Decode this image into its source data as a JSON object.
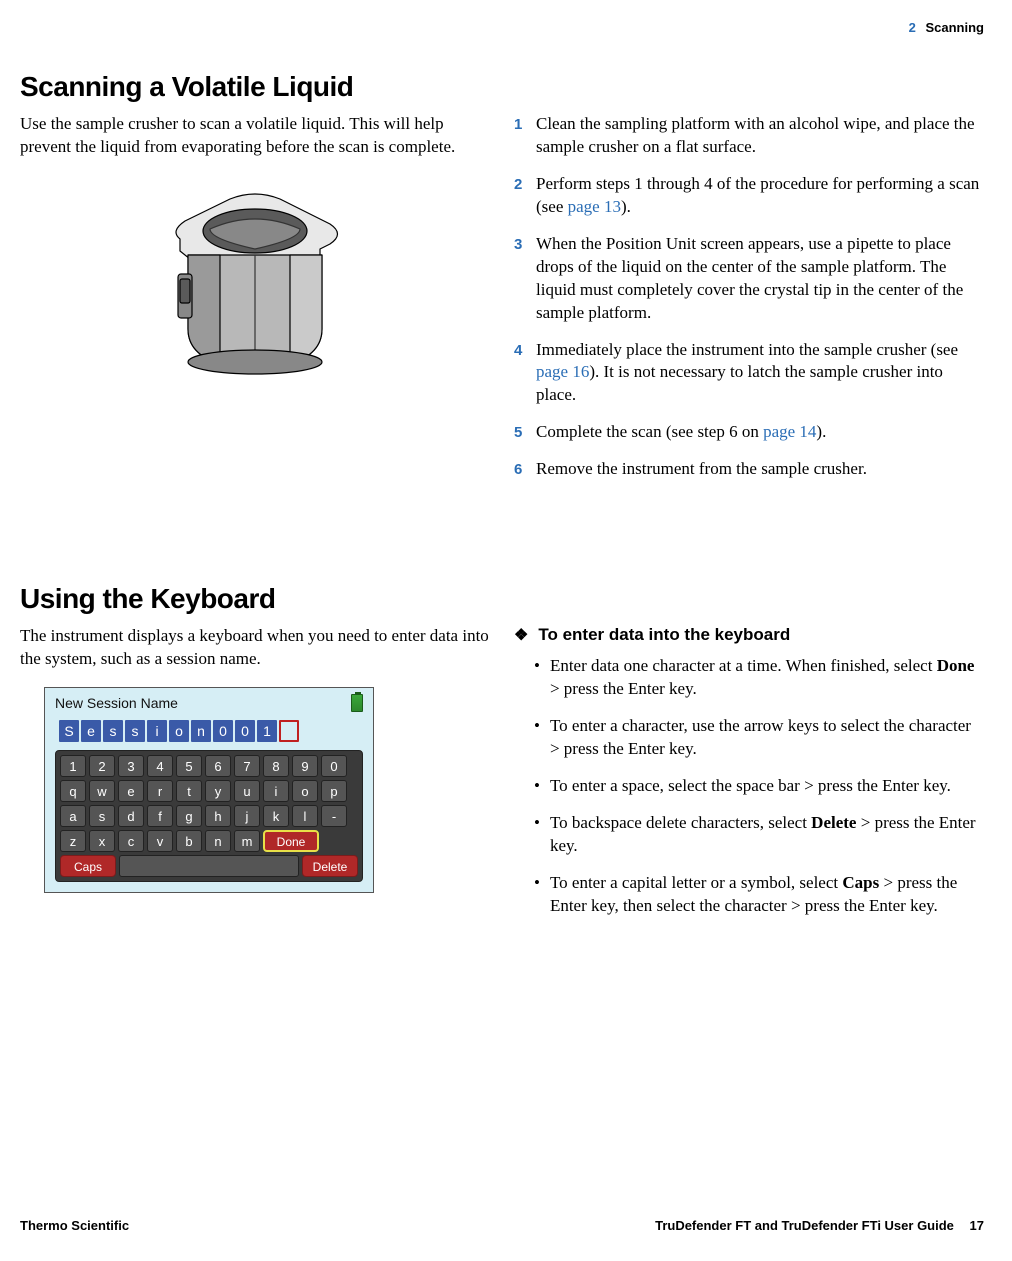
{
  "header": {
    "chapter_num": "2",
    "chapter_name": "Scanning"
  },
  "section1": {
    "title": "Scanning a Volatile Liquid",
    "intro": "Use the sample crusher to scan a volatile liquid. This will help prevent the liquid from evaporating before the scan is complete.",
    "steps": [
      {
        "n": "1",
        "text_a": "Clean the sampling platform with an alcohol wipe, and place the sample crusher on a flat surface."
      },
      {
        "n": "2",
        "text_a": "Perform steps 1 through 4 of the procedure for performing a scan (see ",
        "link": "page 13",
        "text_b": ")."
      },
      {
        "n": "3",
        "text_a": "When the Position Unit screen appears, use a pipette to place drops of the liquid on the center of the sample platform. The liquid must completely cover the crystal tip in the center of the sample platform."
      },
      {
        "n": "4",
        "text_a": "Immediately place the instrument into the sample crusher (see ",
        "link": "page 16",
        "text_b": "). It is not necessary to latch the sample crusher into place."
      },
      {
        "n": "5",
        "text_a": "Complete the scan (see step 6 on ",
        "link": "page 14",
        "text_b": ")."
      },
      {
        "n": "6",
        "text_a": "Remove the instrument from the sample crusher."
      }
    ]
  },
  "section2": {
    "title": "Using the Keyboard",
    "intro": "The instrument displays a keyboard when you need to enter data into the system, such as a session name.",
    "screenshot": {
      "title": "New Session Name",
      "session_chars": [
        "S",
        "e",
        "s",
        "s",
        "i",
        "o",
        "n",
        "0",
        "0",
        "1"
      ],
      "keyboard": {
        "row1": [
          "1",
          "2",
          "3",
          "4",
          "5",
          "6",
          "7",
          "8",
          "9",
          "0"
        ],
        "row2": [
          "q",
          "w",
          "e",
          "r",
          "t",
          "y",
          "u",
          "i",
          "o",
          "p"
        ],
        "row3": [
          "a",
          "s",
          "d",
          "f",
          "g",
          "h",
          "j",
          "k",
          "l",
          "-"
        ],
        "row4": [
          "z",
          "x",
          "c",
          "v",
          "b",
          "n",
          "m"
        ],
        "done": "Done",
        "caps": "Caps",
        "delete": "Delete"
      }
    },
    "subhead": "To enter data into the keyboard",
    "bullets": [
      {
        "pre": "Enter data one character at a time. When finished, select ",
        "bold": "Done",
        "post": " > press the Enter key."
      },
      {
        "pre": "To enter a character, use the arrow keys to select the character > press the Enter key."
      },
      {
        "pre": "To enter a space, select the space bar > press the Enter key."
      },
      {
        "pre": "To backspace delete characters, select ",
        "bold": "Delete",
        "post": " > press the Enter key."
      },
      {
        "pre": "To enter a capital letter or a symbol, select ",
        "bold": "Caps",
        "post": " > press the Enter key, then select the character > press the Enter key."
      }
    ]
  },
  "footer": {
    "left": "Thermo Scientific",
    "right_title": "TruDefender FT and TruDefender FTi User Guide",
    "page": "17"
  },
  "colors": {
    "accent_blue": "#2a6db5",
    "kb_bg": "#3a3a3a",
    "kb_key": "#555555",
    "kb_red": "#b02828",
    "session_blue": "#3a5aa8",
    "screenshot_bg": "#d6eef5"
  },
  "illustration": {
    "stroke": "#000000",
    "fill_light": "#e8e8e8",
    "fill_mid": "#b8b8b8",
    "fill_dark": "#888888",
    "fill_darker": "#5a5a5a"
  }
}
